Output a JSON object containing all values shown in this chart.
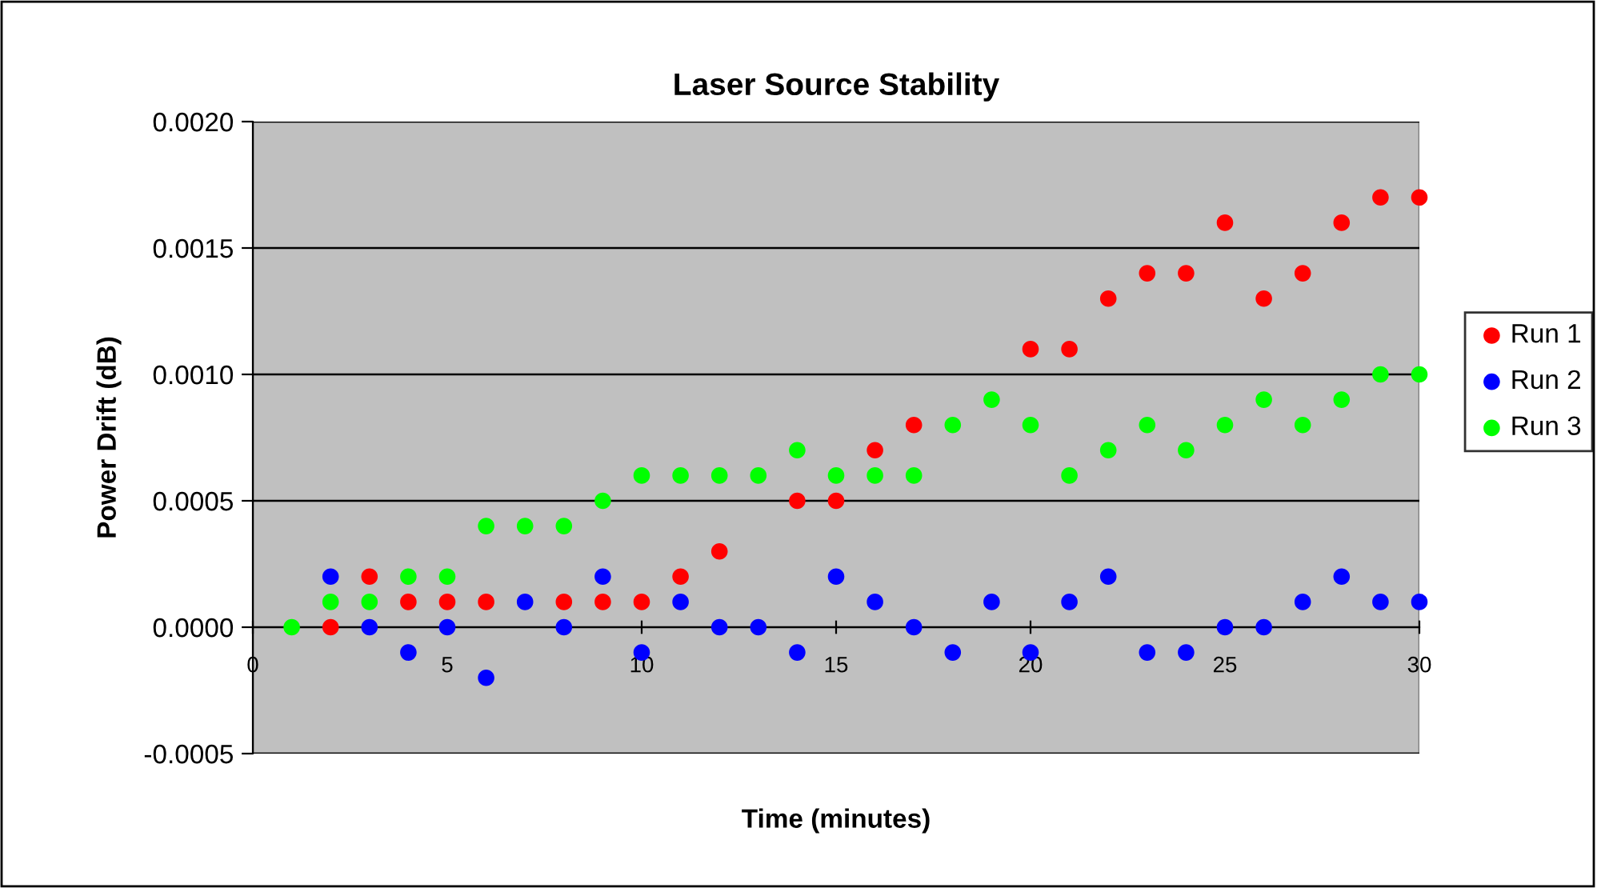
{
  "chart_data": {
    "type": "scatter",
    "title": "Laser Source Stability",
    "xlabel": "Time (minutes)",
    "ylabel": "Power Drift (dB)",
    "x": [
      1,
      2,
      3,
      4,
      5,
      6,
      7,
      8,
      9,
      10,
      11,
      12,
      13,
      14,
      15,
      16,
      17,
      18,
      19,
      20,
      21,
      22,
      23,
      24,
      25,
      26,
      27,
      28,
      29,
      30
    ],
    "series": [
      {
        "name": "Run 1",
        "color": "#ff0000",
        "values": [
          null,
          0,
          0.0002,
          0.0001,
          0.0001,
          0.0001,
          null,
          0.0001,
          0.0001,
          0.0001,
          0.0002,
          0.0003,
          null,
          0.0005,
          0.0005,
          0.0007,
          0.0008,
          null,
          null,
          0.0011,
          0.0011,
          0.0013,
          0.0014,
          0.0014,
          0.0016,
          0.0013,
          0.0014,
          0.0016,
          0.0017,
          0.0017
        ]
      },
      {
        "name": "Run 2",
        "color": "#0000ff",
        "values": [
          null,
          0.0002,
          0,
          -0.0001,
          0,
          -0.0002,
          0.0001,
          0,
          0.0002,
          -0.0001,
          0.0001,
          0,
          0,
          -0.0001,
          0.0002,
          0.0001,
          0,
          -0.0001,
          0.0001,
          -0.0001,
          0.0001,
          0.0002,
          -0.0001,
          -0.0001,
          0,
          0,
          0.0001,
          0.0002,
          0.0001,
          0.0001
        ]
      },
      {
        "name": "Run 3",
        "color": "#00ff00",
        "values": [
          0,
          0.0001,
          0.0001,
          0.0002,
          0.0002,
          0.0004,
          0.0004,
          0.0004,
          0.0005,
          0.0006,
          0.0006,
          0.0006,
          0.0006,
          0.0007,
          0.0006,
          0.0006,
          0.0006,
          0.0008,
          0.0009,
          0.0008,
          0.0006,
          0.0007,
          0.0008,
          0.0007,
          0.0008,
          0.0009,
          0.0008,
          0.0009,
          0.001,
          0.001
        ]
      }
    ],
    "xlim": [
      0,
      30
    ],
    "xticks": [
      0,
      5,
      10,
      15,
      20,
      25,
      30
    ],
    "ylim": [
      -0.0005,
      0.002
    ],
    "yticks": [
      {
        "value": -0.0005,
        "label": "-0.0005"
      },
      {
        "value": 0,
        "label": "0.0000"
      },
      {
        "value": 0.0005,
        "label": "0.0005"
      },
      {
        "value": 0.001,
        "label": "0.0010"
      },
      {
        "value": 0.0015,
        "label": "0.0015"
      },
      {
        "value": 0.002,
        "label": "0.0020"
      }
    ],
    "grid": "y",
    "legend": "right",
    "marker": "circle"
  }
}
